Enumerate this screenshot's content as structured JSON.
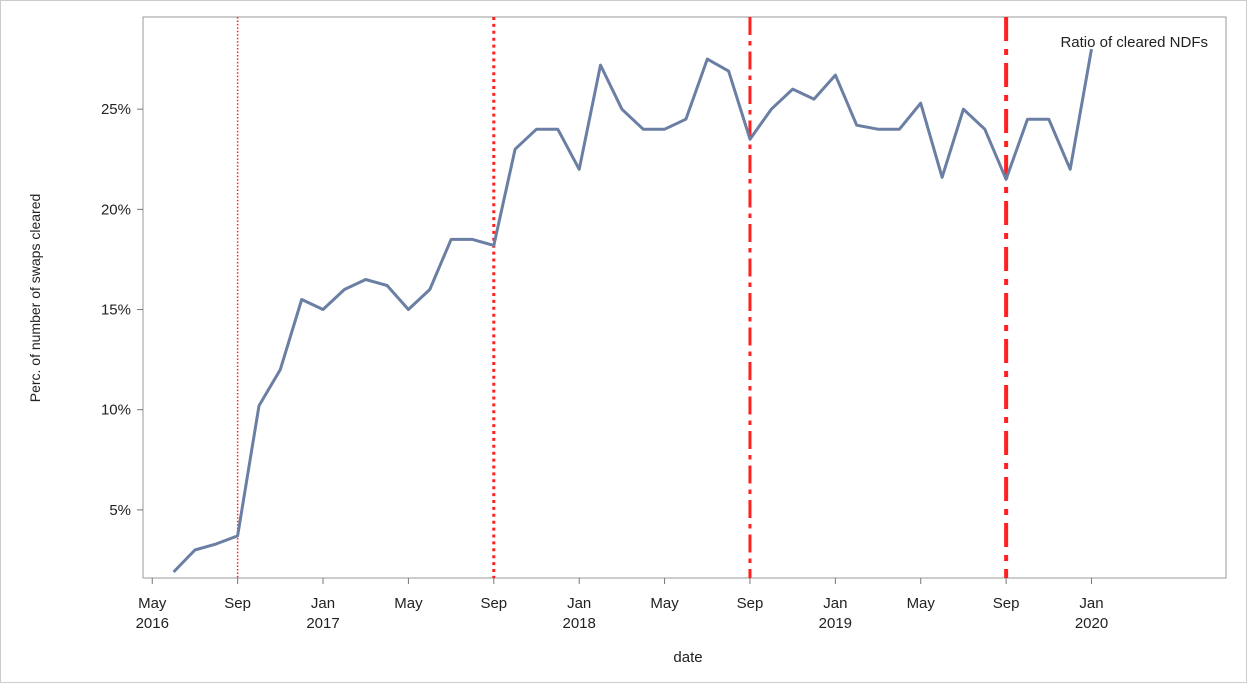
{
  "chart_data": {
    "type": "line",
    "x_label": "date",
    "y_label": "Perc. of number of swaps cleared",
    "series": [
      {
        "name": "Ratio of cleared NDFs",
        "color": "#6a7fa3",
        "values": [
          1.9,
          3.0,
          3.3,
          3.7,
          10.2,
          12.0,
          15.5,
          15.0,
          16.0,
          16.5,
          16.2,
          15.0,
          16.0,
          18.5,
          18.5,
          18.2,
          23.0,
          24.0,
          24.0,
          22.0,
          27.2,
          25.0,
          24.0,
          24.0,
          24.5,
          27.5,
          26.9,
          23.5,
          25.0,
          26.0,
          25.5,
          26.7,
          24.2,
          24.0,
          24.0,
          25.3,
          21.6,
          25.0,
          24.0,
          21.5,
          24.5,
          24.5,
          22.0,
          28.0
        ]
      }
    ],
    "x": [
      "2016-06",
      "2016-07",
      "2016-08",
      "2016-09",
      "2016-10",
      "2016-11",
      "2016-12",
      "2017-01",
      "2017-02",
      "2017-03",
      "2017-04",
      "2017-05",
      "2017-06",
      "2017-07",
      "2017-08",
      "2017-09",
      "2017-10",
      "2017-11",
      "2017-12",
      "2018-01",
      "2018-02",
      "2018-03",
      "2018-04",
      "2018-05",
      "2018-06",
      "2018-07",
      "2018-08",
      "2018-09",
      "2018-10",
      "2018-11",
      "2018-12",
      "2019-01",
      "2019-02",
      "2019-03",
      "2019-04",
      "2019-05",
      "2019-06",
      "2019-07",
      "2019-08",
      "2019-09",
      "2019-10",
      "2019-11",
      "2019-12",
      "2020-01"
    ],
    "xlim": [
      "2016-04-18",
      "2020-07-10"
    ],
    "xticks": [
      {
        "value": "2016-05",
        "label": "May 2016"
      },
      {
        "value": "2016-09",
        "label": "Sep"
      },
      {
        "value": "2017-01",
        "label": "Jan 2017"
      },
      {
        "value": "2017-05",
        "label": "May"
      },
      {
        "value": "2017-09",
        "label": "Sep"
      },
      {
        "value": "2018-01",
        "label": "Jan 2018"
      },
      {
        "value": "2018-05",
        "label": "May"
      },
      {
        "value": "2018-09",
        "label": "Sep"
      },
      {
        "value": "2019-01",
        "label": "Jan 2019"
      },
      {
        "value": "2019-05",
        "label": "May"
      },
      {
        "value": "2019-09",
        "label": "Sep"
      },
      {
        "value": "2020-01",
        "label": "Jan 2020"
      }
    ],
    "ylim": [
      1.6,
      29.6
    ],
    "yticks": [
      {
        "value": 5,
        "label": "5%"
      },
      {
        "value": 10,
        "label": "10%"
      },
      {
        "value": 15,
        "label": "15%"
      },
      {
        "value": 20,
        "label": "20%"
      },
      {
        "value": 25,
        "label": "25%"
      }
    ],
    "vlines": [
      {
        "x": "2016-09",
        "style": "dotted",
        "width": 1.5,
        "color": "#ff2020"
      },
      {
        "x": "2017-09",
        "style": "dotted",
        "width": 3,
        "color": "#ff2020"
      },
      {
        "x": "2018-09",
        "style": "dashdot",
        "width": 3,
        "color": "#ff2020"
      },
      {
        "x": "2019-09",
        "style": "dashdot",
        "width": 4,
        "color": "#ff2020"
      }
    ],
    "legend": "upper right"
  }
}
